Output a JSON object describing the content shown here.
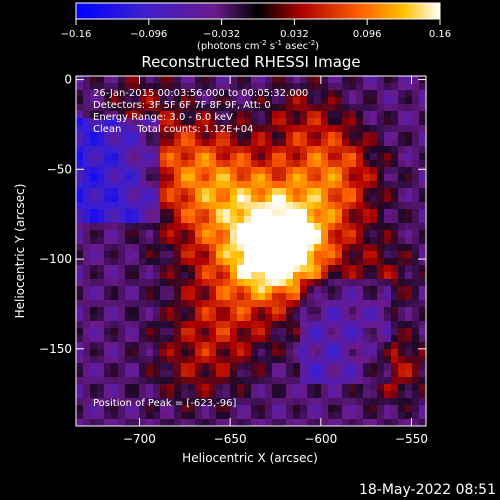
{
  "colorbar": {
    "ticks": [
      "-0.16",
      "-0.096",
      "-0.032",
      "0.032",
      "0.096",
      "0.16"
    ],
    "units": "(photons cm",
    "units_exp1": "-2",
    "units_mid": " s",
    "units_exp2": "-1",
    "units_tail": " asec",
    "units_exp3": "-2",
    "units_close": ")"
  },
  "chart_data": {
    "type": "heatmap",
    "title": "Reconstructed RHESSI Image",
    "xlabel": "Heliocentric X (arcsec)",
    "ylabel": "Heliocentric Y (arcsec)",
    "xlim": [
      -735,
      -542
    ],
    "ylim": [
      -193,
      2
    ],
    "x_ticks": [
      -700,
      -650,
      -600,
      -550
    ],
    "y_ticks": [
      0,
      -50,
      -100,
      -150
    ],
    "x_tick_labels": [
      "−700",
      "−650",
      "−600",
      "−550"
    ],
    "y_tick_labels": [
      "0",
      "−50",
      "−100",
      "−150"
    ],
    "colorbar_range": [
      -0.16,
      0.16
    ],
    "colormap": "blue-purple-red-orange-yellow-white",
    "peak": {
      "x": -623,
      "y": -96
    },
    "annotations": [
      "26-Jan-2015 00:03:56.000 to 00:05:32.000",
      "Detectors: 3F 5F 6F 7F 8F 9F, Att: 0",
      "Energy Range: 3.0 - 6.0 keV",
      "Clean     Total counts: 1.12E+04"
    ],
    "peak_label": "Position of Peak = [-623,-96]"
  },
  "timestamp": "18-May-2022 08:51"
}
